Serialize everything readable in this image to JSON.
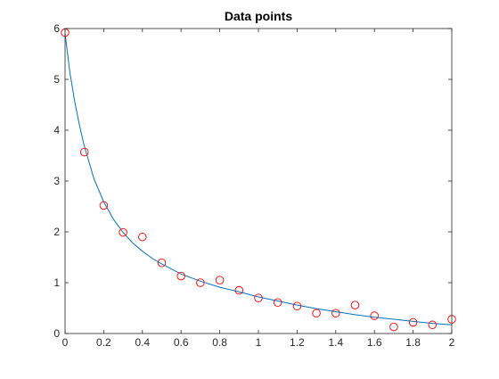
{
  "chart_data": {
    "type": "scatter",
    "title": "Data points",
    "xlabel": "",
    "ylabel": "",
    "xlim": [
      0,
      2
    ],
    "ylim": [
      0,
      6
    ],
    "x_ticks": [
      "0",
      "0.2",
      "0.4",
      "0.6",
      "0.8",
      "1",
      "1.2",
      "1.4",
      "1.6",
      "1.8",
      "2"
    ],
    "y_ticks": [
      "0",
      "1",
      "2",
      "3",
      "4",
      "5",
      "6"
    ],
    "grid": false,
    "legend": "none",
    "series": [
      {
        "kind": "markers",
        "marker": "circle",
        "color": "#ff0000",
        "x": [
          0,
          0.1,
          0.2,
          0.3,
          0.4,
          0.5,
          0.6,
          0.7,
          0.8,
          0.9,
          1.0,
          1.1,
          1.2,
          1.3,
          1.4,
          1.5,
          1.6,
          1.7,
          1.8,
          1.9,
          2.0
        ],
        "y": [
          5.92,
          3.57,
          2.52,
          1.99,
          1.9,
          1.39,
          1.13,
          1.0,
          1.05,
          0.85,
          0.7,
          0.61,
          0.54,
          0.4,
          0.4,
          0.56,
          0.35,
          0.13,
          0.22,
          0.17,
          0.28
        ]
      },
      {
        "kind": "line",
        "color": "#0072bd",
        "x": [
          0,
          0.025,
          0.05,
          0.075,
          0.1,
          0.15,
          0.2,
          0.25,
          0.3,
          0.35,
          0.4,
          0.45,
          0.5,
          0.6,
          0.7,
          0.8,
          0.9,
          1.0,
          1.1,
          1.2,
          1.3,
          1.4,
          1.5,
          1.6,
          1.7,
          1.8,
          1.9,
          2.0
        ],
        "y": [
          5.9,
          5.14,
          4.56,
          4.09,
          3.68,
          3.04,
          2.59,
          2.25,
          1.99,
          1.78,
          1.62,
          1.48,
          1.37,
          1.17,
          1.03,
          0.91,
          0.82,
          0.72,
          0.64,
          0.56,
          0.49,
          0.43,
          0.37,
          0.32,
          0.28,
          0.24,
          0.2,
          0.17
        ]
      }
    ]
  }
}
